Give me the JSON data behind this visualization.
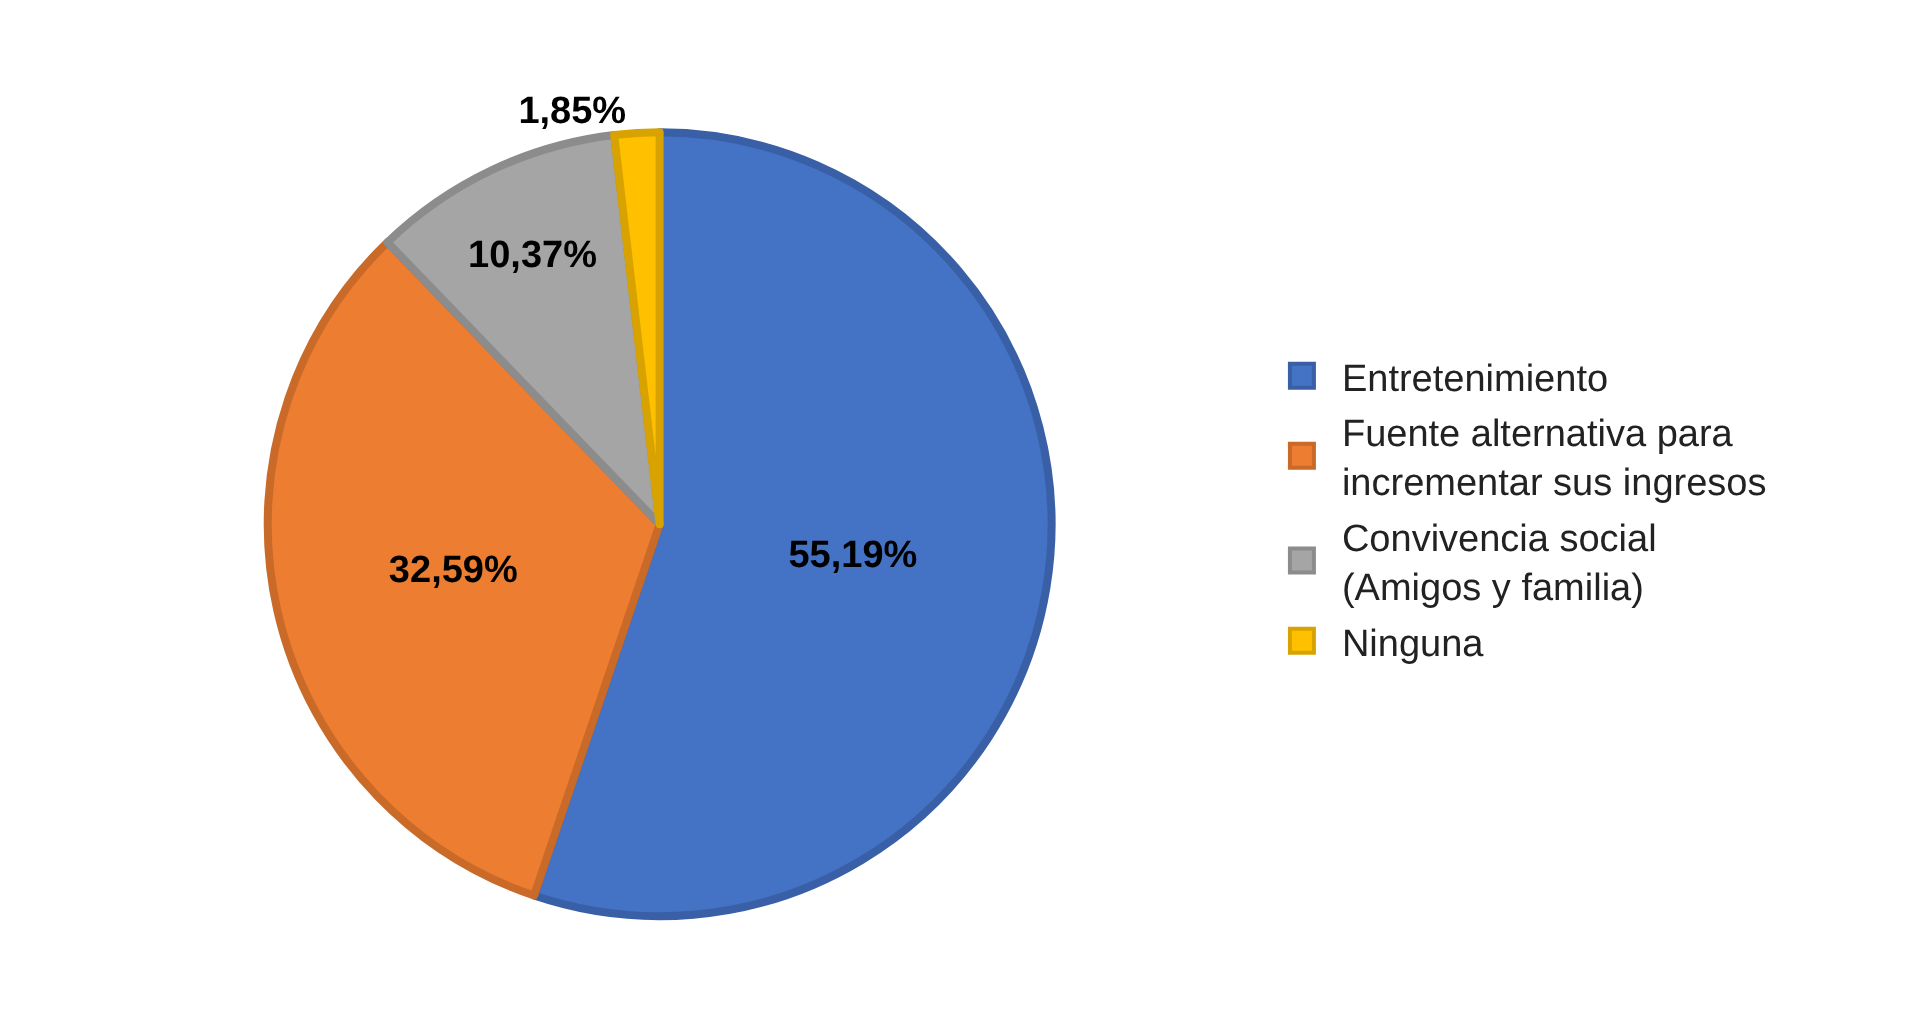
{
  "chart_data": {
    "type": "pie",
    "categories": [
      "Entretenimiento",
      "Fuente alternativa para incrementar sus ingresos",
      "Convivencia social (Amigos y familia)",
      "Ninguna"
    ],
    "values": [
      55.19,
      32.59,
      10.37,
      1.85
    ],
    "value_labels": [
      "55,19%",
      "32,59%",
      "10,37%",
      "1,85%"
    ],
    "colors": [
      "#4472c4",
      "#ed7d31",
      "#a5a5a5",
      "#ffc000"
    ],
    "legend": "right"
  }
}
